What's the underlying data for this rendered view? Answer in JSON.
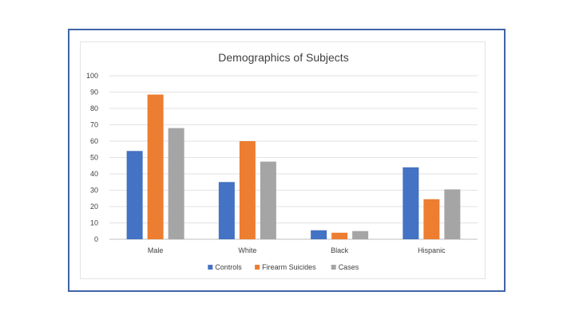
{
  "chart_data": {
    "type": "bar",
    "title": "Demographics of Subjects",
    "xlabel": "",
    "ylabel": "",
    "categories": [
      "Male",
      "White",
      "Black",
      "Hispanic"
    ],
    "ylim": [
      0,
      100
    ],
    "yticks": [
      0,
      10,
      20,
      30,
      40,
      50,
      60,
      70,
      80,
      90,
      100
    ],
    "grid": true,
    "legend_position": "bottom",
    "series": [
      {
        "name": "Controls",
        "color": "#4472c4",
        "values": [
          54,
          35,
          5.5,
          44
        ]
      },
      {
        "name": "Firearm Suicides",
        "color": "#ed7d31",
        "values": [
          88.5,
          60,
          4,
          24.5
        ]
      },
      {
        "name": "Cases",
        "color": "#a5a5a5",
        "values": [
          68,
          47.5,
          5,
          30.5
        ]
      }
    ]
  }
}
